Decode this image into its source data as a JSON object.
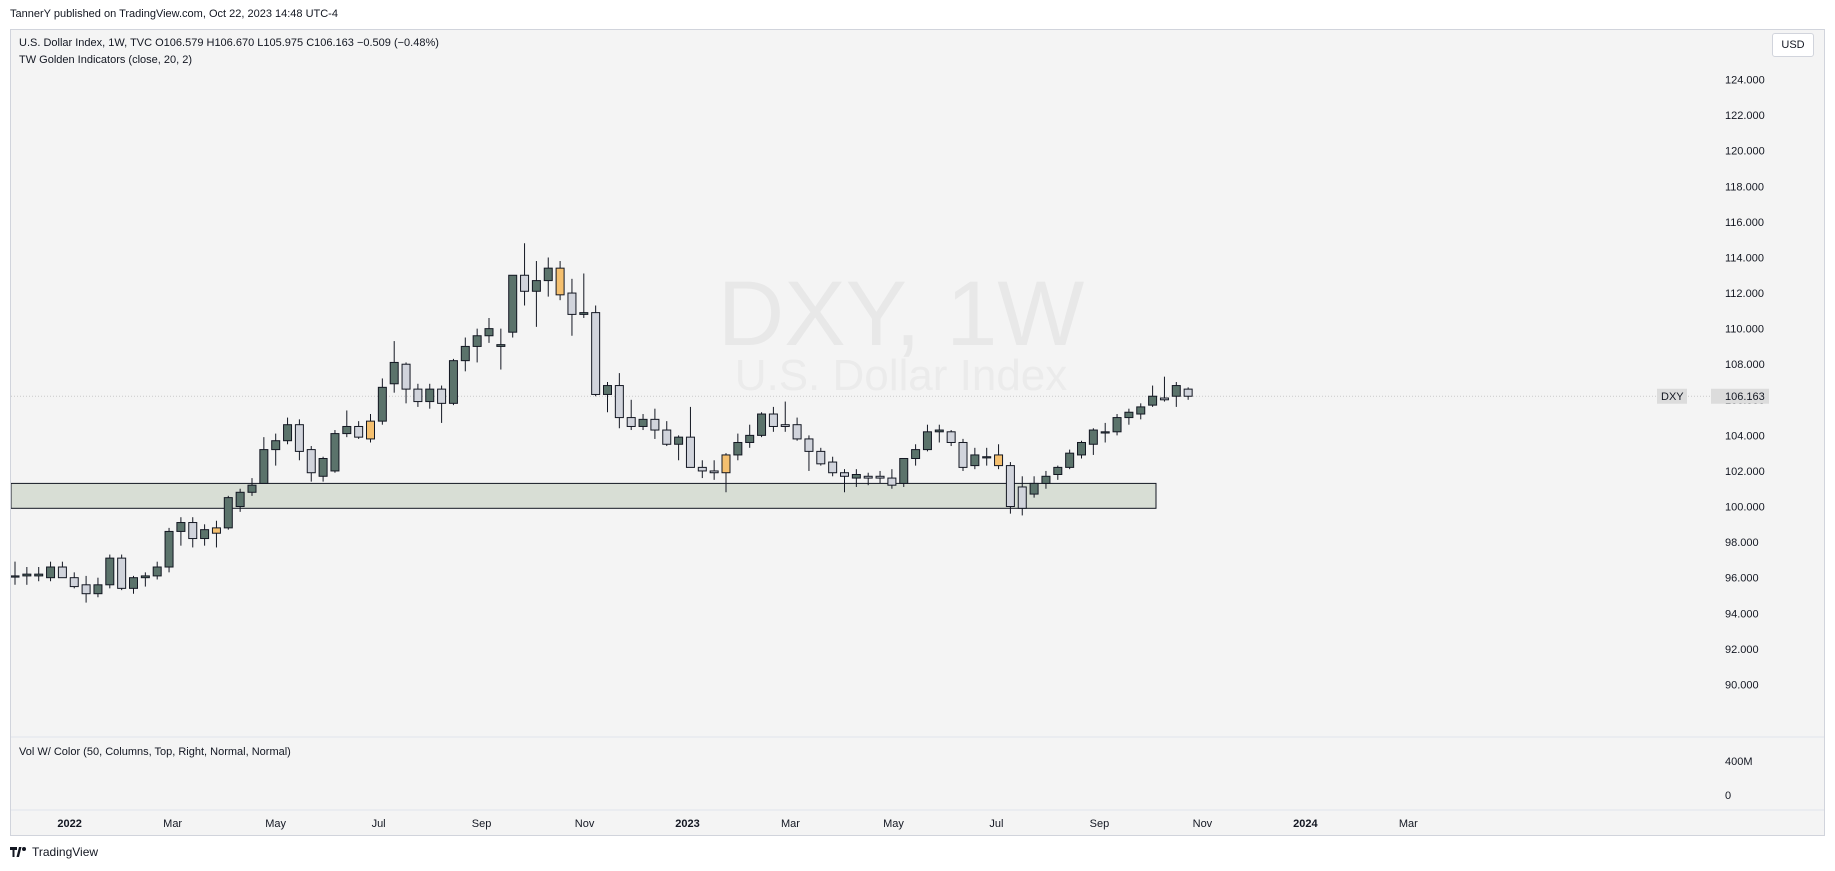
{
  "header": {
    "caption": "TannerY published on TradingView.com, Oct 22, 2023 14:48 UTC-4"
  },
  "legend": {
    "symbol_line": "U.S. Dollar Index, 1W, TVC  O106.579  H106.670  L105.975  C106.163  −0.509 (−0.48%)",
    "indicator_line": "TW Golden Indicators (close, 20, 2)"
  },
  "volume": {
    "legend": "Vol W/ Color (50, Columns, Top, Right, Normal, Normal)",
    "scale_labels": [
      "400M",
      "0"
    ]
  },
  "currency_button": "USD",
  "watermark": {
    "ticker": "DXY, 1W",
    "name": "U.S. Dollar Index"
  },
  "last_price": {
    "symbol": "DXY",
    "value": "106.163"
  },
  "footer": {
    "brand": "TradingView",
    "icon": "tradingview-logo-icon"
  },
  "colors": {
    "bull": "#5b736b",
    "bear": "#d1d4dc",
    "highlight": "#f5c06f",
    "zone_fill": "#d8ded5",
    "background": "#f4f4f4"
  },
  "chart_data": {
    "type": "candlestick",
    "timeframe": "1W",
    "ylim": [
      88,
      126
    ],
    "y_ticks": [
      "90.000",
      "92.000",
      "94.000",
      "96.000",
      "98.000",
      "100.000",
      "102.000",
      "104.000",
      "106.000",
      "108.000",
      "110.000",
      "112.000",
      "114.000",
      "116.000",
      "118.000",
      "120.000",
      "122.000",
      "124.000"
    ],
    "x_ticks": [
      "2022",
      "Mar",
      "May",
      "Jul",
      "Sep",
      "Nov",
      "2023",
      "Mar",
      "May",
      "Jul",
      "Sep",
      "Nov",
      "2024",
      "Mar"
    ],
    "support_zone": {
      "low": 99.9,
      "high": 101.3
    },
    "candles": [
      {
        "o": 96.1,
        "h": 96.9,
        "l": 95.6,
        "c": 96.1
      },
      {
        "o": 96.1,
        "h": 96.6,
        "l": 95.6,
        "c": 96.2
      },
      {
        "o": 96.1,
        "h": 96.6,
        "l": 95.8,
        "c": 96.2
      },
      {
        "o": 96.0,
        "h": 96.9,
        "l": 95.8,
        "c": 96.6
      },
      {
        "o": 96.6,
        "h": 96.9,
        "l": 96.0,
        "c": 96.0
      },
      {
        "o": 96.0,
        "h": 96.3,
        "l": 95.4,
        "c": 95.5
      },
      {
        "o": 95.6,
        "h": 96.1,
        "l": 94.6,
        "c": 95.1
      },
      {
        "o": 95.1,
        "h": 96.0,
        "l": 94.9,
        "c": 95.6
      },
      {
        "o": 95.6,
        "h": 97.3,
        "l": 95.4,
        "c": 97.1
      },
      {
        "o": 97.1,
        "h": 97.3,
        "l": 95.3,
        "c": 95.4
      },
      {
        "o": 95.4,
        "h": 96.1,
        "l": 95.1,
        "c": 96.0
      },
      {
        "o": 96.0,
        "h": 96.3,
        "l": 95.5,
        "c": 96.1
      },
      {
        "o": 96.1,
        "h": 96.9,
        "l": 95.9,
        "c": 96.6
      },
      {
        "o": 96.6,
        "h": 98.8,
        "l": 96.3,
        "c": 98.6
      },
      {
        "o": 98.6,
        "h": 99.4,
        "l": 97.8,
        "c": 99.1
      },
      {
        "o": 99.1,
        "h": 99.4,
        "l": 97.7,
        "c": 98.2
      },
      {
        "o": 98.2,
        "h": 99.0,
        "l": 97.8,
        "c": 98.7
      },
      {
        "o": 98.5,
        "h": 99.2,
        "l": 97.7,
        "c": 98.8,
        "hl": true
      },
      {
        "o": 98.8,
        "h": 100.6,
        "l": 98.7,
        "c": 100.5
      },
      {
        "o": 100.0,
        "h": 101.0,
        "l": 99.7,
        "c": 100.8
      },
      {
        "o": 100.8,
        "h": 101.6,
        "l": 100.6,
        "c": 101.2
      },
      {
        "o": 101.3,
        "h": 103.9,
        "l": 101.3,
        "c": 103.2
      },
      {
        "o": 103.2,
        "h": 104.1,
        "l": 102.3,
        "c": 103.7
      },
      {
        "o": 103.7,
        "h": 105.0,
        "l": 103.5,
        "c": 104.6
      },
      {
        "o": 104.6,
        "h": 104.9,
        "l": 102.6,
        "c": 103.1
      },
      {
        "o": 103.2,
        "h": 103.4,
        "l": 101.4,
        "c": 101.9
      },
      {
        "o": 101.7,
        "h": 102.8,
        "l": 101.4,
        "c": 102.7
      },
      {
        "o": 102.0,
        "h": 104.3,
        "l": 101.9,
        "c": 104.1
      },
      {
        "o": 104.1,
        "h": 105.4,
        "l": 103.9,
        "c": 104.5
      },
      {
        "o": 104.5,
        "h": 104.8,
        "l": 103.8,
        "c": 103.9
      },
      {
        "o": 103.8,
        "h": 105.2,
        "l": 103.6,
        "c": 104.8,
        "hl": true
      },
      {
        "o": 104.8,
        "h": 107.2,
        "l": 104.6,
        "c": 106.7
      },
      {
        "o": 106.9,
        "h": 109.3,
        "l": 106.4,
        "c": 108.1
      },
      {
        "o": 108.0,
        "h": 108.1,
        "l": 105.8,
        "c": 106.6
      },
      {
        "o": 106.6,
        "h": 106.9,
        "l": 105.6,
        "c": 105.9
      },
      {
        "o": 105.9,
        "h": 106.9,
        "l": 105.5,
        "c": 106.6
      },
      {
        "o": 106.6,
        "h": 106.8,
        "l": 104.7,
        "c": 105.8
      },
      {
        "o": 105.8,
        "h": 108.3,
        "l": 105.7,
        "c": 108.2
      },
      {
        "o": 108.2,
        "h": 109.5,
        "l": 107.6,
        "c": 109.0
      },
      {
        "o": 109.0,
        "h": 110.0,
        "l": 108.1,
        "c": 109.6
      },
      {
        "o": 109.6,
        "h": 110.6,
        "l": 109.2,
        "c": 110.0
      },
      {
        "o": 109.0,
        "h": 110.0,
        "l": 107.7,
        "c": 109.1
      },
      {
        "o": 109.8,
        "h": 113.0,
        "l": 109.5,
        "c": 113.0
      },
      {
        "o": 113.0,
        "h": 114.8,
        "l": 111.3,
        "c": 112.1
      },
      {
        "o": 112.1,
        "h": 113.8,
        "l": 110.1,
        "c": 112.7
      },
      {
        "o": 112.7,
        "h": 114.0,
        "l": 111.8,
        "c": 113.4
      },
      {
        "o": 113.4,
        "h": 113.8,
        "l": 111.6,
        "c": 111.9,
        "hl": true
      },
      {
        "o": 112.0,
        "h": 112.8,
        "l": 109.6,
        "c": 110.8
      },
      {
        "o": 110.8,
        "h": 113.1,
        "l": 110.6,
        "c": 110.9
      },
      {
        "o": 110.9,
        "h": 111.3,
        "l": 106.2,
        "c": 106.3
      },
      {
        "o": 106.3,
        "h": 107.0,
        "l": 105.3,
        "c": 106.8
      },
      {
        "o": 106.8,
        "h": 107.5,
        "l": 104.4,
        "c": 105.0
      },
      {
        "o": 105.0,
        "h": 106.0,
        "l": 104.3,
        "c": 104.5
      },
      {
        "o": 104.5,
        "h": 105.2,
        "l": 104.3,
        "c": 104.9
      },
      {
        "o": 104.9,
        "h": 105.5,
        "l": 103.8,
        "c": 104.3
      },
      {
        "o": 104.3,
        "h": 104.8,
        "l": 103.4,
        "c": 103.5
      },
      {
        "o": 103.5,
        "h": 104.0,
        "l": 102.6,
        "c": 103.9
      },
      {
        "o": 103.9,
        "h": 105.6,
        "l": 102.3,
        "c": 102.2
      },
      {
        "o": 102.2,
        "h": 102.6,
        "l": 101.6,
        "c": 102.0
      },
      {
        "o": 102.0,
        "h": 102.6,
        "l": 101.5,
        "c": 101.9
      },
      {
        "o": 101.9,
        "h": 103.0,
        "l": 100.8,
        "c": 102.9,
        "hl": true
      },
      {
        "o": 102.9,
        "h": 104.1,
        "l": 102.6,
        "c": 103.6
      },
      {
        "o": 103.6,
        "h": 104.6,
        "l": 103.3,
        "c": 104.0
      },
      {
        "o": 104.0,
        "h": 105.3,
        "l": 103.9,
        "c": 105.2
      },
      {
        "o": 105.2,
        "h": 105.6,
        "l": 104.2,
        "c": 104.5
      },
      {
        "o": 104.6,
        "h": 105.9,
        "l": 104.2,
        "c": 104.5
      },
      {
        "o": 104.6,
        "h": 105.0,
        "l": 103.7,
        "c": 103.8
      },
      {
        "o": 103.8,
        "h": 104.0,
        "l": 102.0,
        "c": 103.1
      },
      {
        "o": 103.1,
        "h": 103.3,
        "l": 102.3,
        "c": 102.4
      },
      {
        "o": 102.5,
        "h": 102.8,
        "l": 101.7,
        "c": 101.9
      },
      {
        "o": 101.9,
        "h": 102.1,
        "l": 100.8,
        "c": 101.7
      },
      {
        "o": 101.6,
        "h": 102.1,
        "l": 101.1,
        "c": 101.8
      },
      {
        "o": 101.7,
        "h": 101.9,
        "l": 101.2,
        "c": 101.6
      },
      {
        "o": 101.7,
        "h": 102.0,
        "l": 101.3,
        "c": 101.6
      },
      {
        "o": 101.6,
        "h": 102.1,
        "l": 101.0,
        "c": 101.2
      },
      {
        "o": 101.3,
        "h": 102.7,
        "l": 101.1,
        "c": 102.7
      },
      {
        "o": 102.7,
        "h": 103.5,
        "l": 102.3,
        "c": 103.2
      },
      {
        "o": 103.2,
        "h": 104.6,
        "l": 103.1,
        "c": 104.2
      },
      {
        "o": 104.2,
        "h": 104.6,
        "l": 103.6,
        "c": 104.3
      },
      {
        "o": 104.2,
        "h": 104.3,
        "l": 103.4,
        "c": 103.6
      },
      {
        "o": 103.6,
        "h": 103.8,
        "l": 102.0,
        "c": 102.2
      },
      {
        "o": 102.3,
        "h": 103.3,
        "l": 102.1,
        "c": 102.9
      },
      {
        "o": 102.8,
        "h": 103.3,
        "l": 102.3,
        "c": 102.8
      },
      {
        "o": 102.3,
        "h": 103.5,
        "l": 102.1,
        "c": 102.9,
        "hl": true
      },
      {
        "o": 102.3,
        "h": 102.5,
        "l": 99.6,
        "c": 100.0
      },
      {
        "o": 101.1,
        "h": 101.7,
        "l": 99.5,
        "c": 99.9
      },
      {
        "o": 100.7,
        "h": 101.7,
        "l": 100.5,
        "c": 101.3
      },
      {
        "o": 101.3,
        "h": 102.0,
        "l": 101.0,
        "c": 101.7
      },
      {
        "o": 101.8,
        "h": 102.3,
        "l": 101.5,
        "c": 102.2
      },
      {
        "o": 102.2,
        "h": 103.2,
        "l": 102.1,
        "c": 103.0
      },
      {
        "o": 102.9,
        "h": 103.7,
        "l": 102.7,
        "c": 103.6
      },
      {
        "o": 103.5,
        "h": 104.4,
        "l": 102.9,
        "c": 104.3
      },
      {
        "o": 104.2,
        "h": 104.7,
        "l": 103.6,
        "c": 104.2
      },
      {
        "o": 104.2,
        "h": 105.2,
        "l": 104.0,
        "c": 105.0
      },
      {
        "o": 105.0,
        "h": 105.5,
        "l": 104.6,
        "c": 105.3
      },
      {
        "o": 105.2,
        "h": 105.8,
        "l": 104.9,
        "c": 105.6
      },
      {
        "o": 105.7,
        "h": 106.8,
        "l": 105.6,
        "c": 106.2
      },
      {
        "o": 106.1,
        "h": 107.3,
        "l": 105.9,
        "c": 106.0
      },
      {
        "o": 106.2,
        "h": 107.0,
        "l": 105.6,
        "c": 106.8
      },
      {
        "o": 106.6,
        "h": 106.7,
        "l": 106.0,
        "c": 106.2
      }
    ]
  }
}
